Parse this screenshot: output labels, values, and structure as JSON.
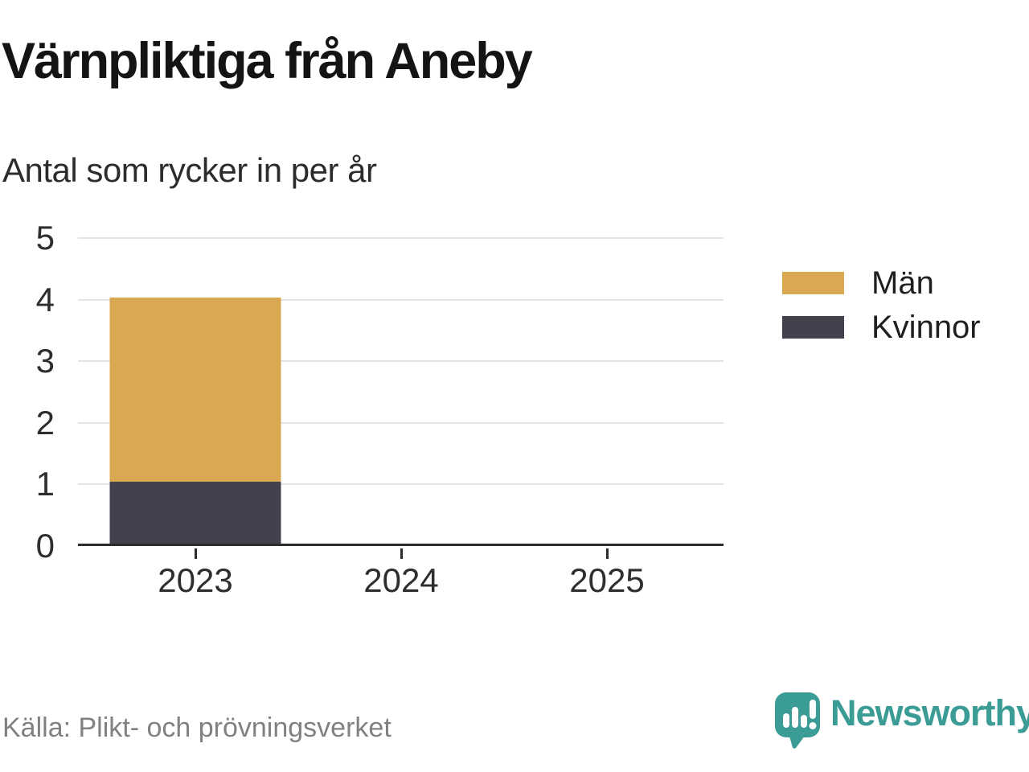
{
  "title": "Värnpliktiga från Aneby",
  "subtitle": "Antal som rycker in per år",
  "source": "Källa: Plikt- och prövningsverket",
  "brand": {
    "name": "Newsworthy",
    "color": "#3a9c95",
    "icon": "newsworthy-speech-bubble-chart-icon"
  },
  "legend": [
    {
      "label": "Män",
      "color": "#d9a850"
    },
    {
      "label": "Kvinnor",
      "color": "#42424f"
    }
  ],
  "colors": {
    "men": "#d9a850",
    "women": "#42424f",
    "gridline": "#e4e4e4",
    "axis": "#2d2d2d",
    "source_text": "#818181",
    "brand_teal": "#3a9c95"
  },
  "chart_data": {
    "type": "bar",
    "stacked": true,
    "title": "Värnpliktiga från Aneby",
    "subtitle": "Antal som rycker in per år",
    "categories": [
      "2023",
      "2024",
      "2025"
    ],
    "series": [
      {
        "name": "Kvinnor",
        "color": "#42424f",
        "values": [
          1,
          0,
          0
        ]
      },
      {
        "name": "Män",
        "color": "#d9a850",
        "values": [
          3,
          0,
          0
        ]
      }
    ],
    "totals": [
      4,
      0,
      0
    ],
    "xlabel": "",
    "ylabel": "",
    "ylim": [
      0,
      5
    ],
    "yticks": [
      0,
      1,
      2,
      3,
      4,
      5
    ],
    "grid": true,
    "legend_position": "right",
    "legend_entries": [
      "Män",
      "Kvinnor"
    ]
  }
}
